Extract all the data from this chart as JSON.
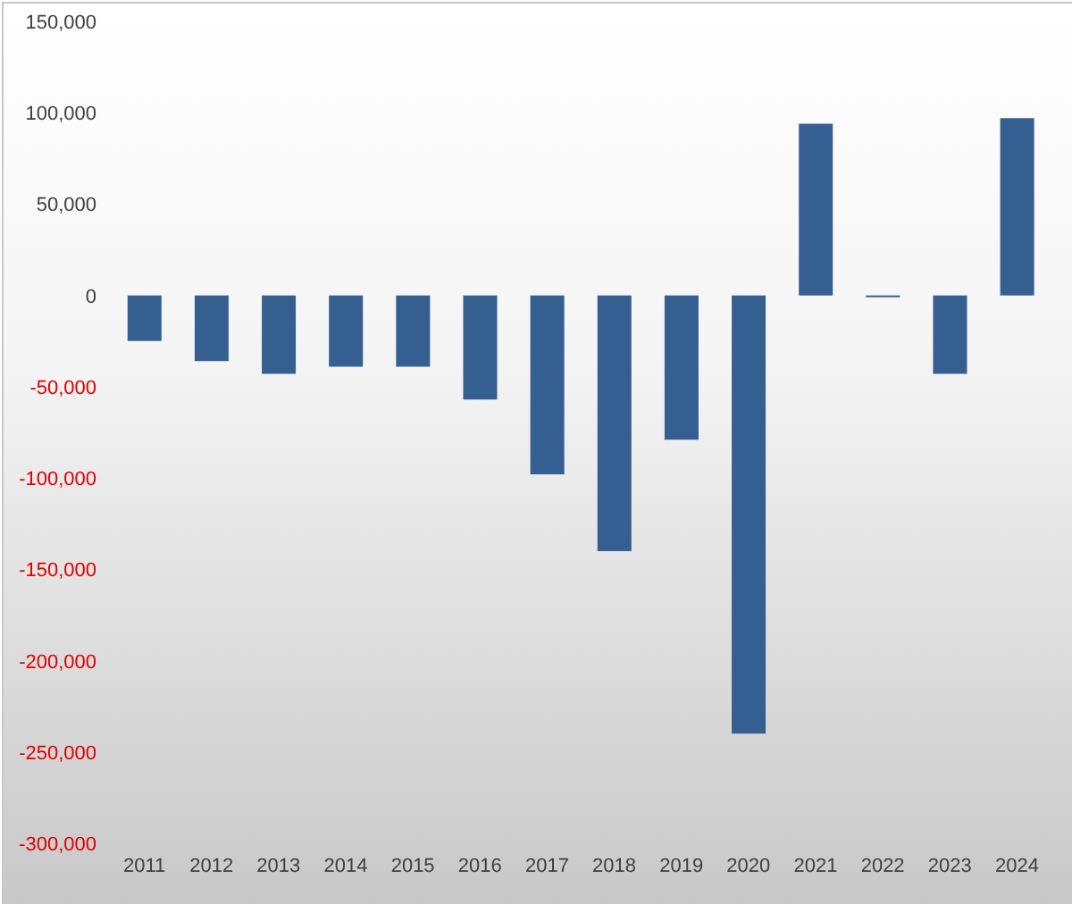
{
  "chart_data": {
    "type": "bar",
    "categories": [
      "2011",
      "2012",
      "2013",
      "2014",
      "2015",
      "2016",
      "2017",
      "2018",
      "2019",
      "2020",
      "2021",
      "2022",
      "2023",
      "2024"
    ],
    "values": [
      -25000,
      -36000,
      -43000,
      -39000,
      -39000,
      -57000,
      -98000,
      -140000,
      -79000,
      -240000,
      94000,
      -1000,
      -43000,
      97000
    ],
    "color": "#355f91",
    "ylim": [
      -300000,
      150000
    ],
    "yticks": [
      {
        "value": -300000,
        "label": "-300,000"
      },
      {
        "value": -250000,
        "label": "-250,000"
      },
      {
        "value": -200000,
        "label": "-200,000"
      },
      {
        "value": -150000,
        "label": "-150,000"
      },
      {
        "value": -100000,
        "label": "-100,000"
      },
      {
        "value": -50000,
        "label": "-50,000"
      },
      {
        "value": 0,
        "label": "0"
      },
      {
        "value": 50000,
        "label": "50,000"
      },
      {
        "value": 100000,
        "label": "100,000"
      },
      {
        "value": 150000,
        "label": "150,000"
      }
    ],
    "grid": false,
    "legend": false
  }
}
